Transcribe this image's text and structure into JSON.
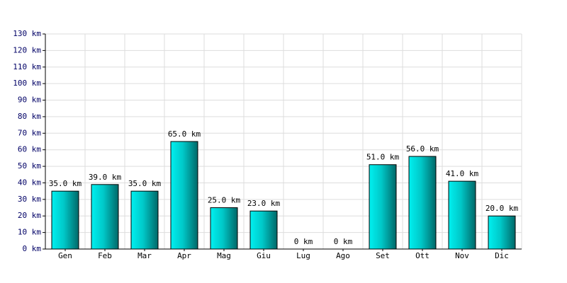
{
  "chart_data": {
    "type": "bar",
    "categories": [
      "Gen",
      "Feb",
      "Mar",
      "Apr",
      "Mag",
      "Giu",
      "Lug",
      "Ago",
      "Set",
      "Ott",
      "Nov",
      "Dic"
    ],
    "values": [
      35,
      39,
      35,
      65,
      25,
      23,
      0,
      0,
      51,
      56,
      41,
      20
    ],
    "value_labels": [
      "35.0 km",
      "39.0 km",
      "35.0 km",
      "65.0 km",
      "25.0 km",
      "23.0 km",
      "0 km",
      "0 km",
      "51.0 km",
      "56.0 km",
      "41.0 km",
      "20.0 km"
    ],
    "color": "#00d0d0",
    "ylim": [
      0,
      130
    ],
    "yticks": [
      {
        "value": 0,
        "label": "0 km"
      },
      {
        "value": 10,
        "label": "10 km"
      },
      {
        "value": 20,
        "label": "20 km"
      },
      {
        "value": 30,
        "label": "30 km"
      },
      {
        "value": 40,
        "label": "40 km"
      },
      {
        "value": 50,
        "label": "50 km"
      },
      {
        "value": 60,
        "label": "60 km"
      },
      {
        "value": 70,
        "label": "70 km"
      },
      {
        "value": 80,
        "label": "80 km"
      },
      {
        "value": 90,
        "label": "90 km"
      },
      {
        "value": 100,
        "label": "100 km"
      },
      {
        "value": 110,
        "label": "110 km"
      },
      {
        "value": 120,
        "label": "120 km"
      },
      {
        "value": 130,
        "label": "130 km"
      }
    ],
    "grid": true
  }
}
